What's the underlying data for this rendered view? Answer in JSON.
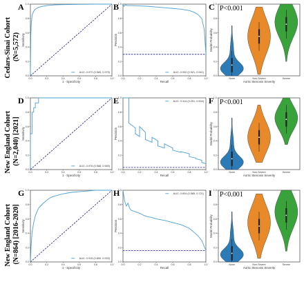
{
  "figure": {
    "cohorts": [
      {
        "name": "Cedars-Sinai Cohort",
        "size": "(N=5,572)"
      },
      {
        "name": "New England Cohort",
        "size": "(N=2,040) [2021]"
      },
      {
        "name": "New England Cohort",
        "size": "(N=864) [2016-2020]"
      }
    ]
  },
  "colors": {
    "roc": "#4a9fd4",
    "baseline": "#1f1f8f",
    "none": "#2c7bb6",
    "non_severe": "#e8892a",
    "severe": "#3aa23a"
  },
  "chart_data": [
    {
      "panel": "A",
      "type": "line",
      "xlabel": "1 - Specificity",
      "ylabel": "Sensitivity",
      "xlim": [
        0,
        1
      ],
      "ylim": [
        0,
        1
      ],
      "xticks": [
        "0.0",
        "0.2",
        "0.4",
        "0.6",
        "0.8",
        "1.0"
      ],
      "yticks": [
        "0.0",
        "0.2",
        "0.4",
        "0.6",
        "0.8",
        "1.0"
      ],
      "legend": "AUC: 0.972 (0.969, 0.975)",
      "x": [
        0,
        0.005,
        0.01,
        0.02,
        0.04,
        0.06,
        0.1,
        0.15,
        0.2,
        0.3,
        0.4,
        0.6,
        0.8,
        1.0
      ],
      "y": [
        0,
        0.55,
        0.72,
        0.84,
        0.9,
        0.93,
        0.955,
        0.97,
        0.98,
        0.99,
        0.993,
        0.997,
        0.999,
        1.0
      ]
    },
    {
      "panel": "B",
      "type": "line",
      "xlabel": "Recall",
      "ylabel": "Precision",
      "xlim": [
        0,
        1
      ],
      "ylim": [
        0,
        1
      ],
      "xticks": [
        "0.0",
        "0.2",
        "0.4",
        "0.6",
        "0.8",
        "1.0"
      ],
      "yticks": [
        "0.0",
        "0.2",
        "0.4",
        "0.6",
        "0.8",
        "1.0"
      ],
      "legend": "AUC: 0.932 (0.921, 0.941)",
      "baseline": 0.3,
      "x": [
        0,
        0.01,
        0.03,
        0.05,
        0.1,
        0.2,
        0.3,
        0.4,
        0.5,
        0.6,
        0.7,
        0.8,
        0.85,
        0.9,
        0.95,
        0.98,
        1.0
      ],
      "y": [
        1.0,
        0.97,
        0.99,
        0.98,
        0.98,
        0.975,
        0.97,
        0.96,
        0.95,
        0.94,
        0.93,
        0.91,
        0.89,
        0.86,
        0.8,
        0.65,
        0.3
      ]
    },
    {
      "panel": "C",
      "type": "violin",
      "xlabel": "Aortic Stenosis Severity",
      "ylabel": "Model Probability",
      "categories": [
        "None",
        "Non-Severe",
        "Severe"
      ],
      "ylim": [
        0,
        1
      ],
      "yticks": [
        "0.0",
        "0.2",
        "0.4",
        "0.6",
        "0.8",
        "1.0"
      ],
      "annotation": "P<0.001",
      "medians": [
        0.15,
        0.55,
        0.72
      ],
      "ranges": [
        [
          0.0,
          0.7
        ],
        [
          0.02,
          0.96
        ],
        [
          0.2,
          1.0
        ]
      ],
      "modes": [
        0.1,
        0.55,
        0.75
      ]
    },
    {
      "panel": "D",
      "type": "line",
      "xlabel": "1 - Specificity",
      "ylabel": "Sensitivity",
      "xlim": [
        0,
        1
      ],
      "ylim": [
        0,
        1
      ],
      "xticks": [
        "0.0",
        "0.2",
        "0.4",
        "0.6",
        "0.8",
        "1.0"
      ],
      "yticks": [
        "0.0",
        "0.2",
        "0.4",
        "0.6",
        "0.8",
        "1.0"
      ],
      "legend": "AUC: 0.976 (0.968, 0.983)",
      "x": [
        0,
        0.0,
        0.02,
        0.02,
        0.04,
        0.04,
        0.06,
        0.06,
        0.1,
        0.1,
        0.15,
        0.15,
        1.0
      ],
      "y": [
        0,
        0.5,
        0.5,
        0.8,
        0.8,
        0.86,
        0.86,
        0.93,
        0.93,
        1.0,
        1.0,
        1.0,
        1.0
      ]
    },
    {
      "panel": "E",
      "type": "line",
      "xlabel": "Recall",
      "ylabel": "Precision",
      "xlim": [
        0,
        1
      ],
      "ylim": [
        0,
        1
      ],
      "xticks": [
        "0.0",
        "0.2",
        "0.4",
        "0.6",
        "0.8",
        "1.0"
      ],
      "yticks": [
        "0.0",
        "0.2",
        "0.4",
        "0.6",
        "0.8",
        "1.0"
      ],
      "legend": "AUC: 0.414 (0.251, 0.594)",
      "baseline": 0.03,
      "x": [
        0.0,
        0.07,
        0.07,
        0.15,
        0.15,
        0.2,
        0.2,
        0.27,
        0.27,
        0.35,
        0.35,
        0.42,
        0.42,
        0.5,
        0.5,
        0.6,
        0.6,
        0.7,
        0.7,
        0.8,
        0.8,
        0.88,
        0.88,
        0.95,
        0.95,
        1.0
      ],
      "y": [
        1.0,
        1.0,
        0.65,
        0.58,
        0.5,
        0.46,
        0.6,
        0.52,
        0.42,
        0.38,
        0.45,
        0.4,
        0.33,
        0.3,
        0.36,
        0.3,
        0.27,
        0.24,
        0.25,
        0.22,
        0.18,
        0.16,
        0.15,
        0.13,
        0.1,
        0.08
      ]
    },
    {
      "panel": "F",
      "type": "violin",
      "xlabel": "Aortic Stenosis Severity",
      "ylabel": "Model Probability",
      "categories": [
        "None",
        "Non-Severe",
        "Severe"
      ],
      "ylim": [
        0,
        1
      ],
      "yticks": [
        "0.0",
        "0.2",
        "0.4",
        "0.6",
        "0.8",
        "1.0"
      ],
      "annotation": "P<0.001",
      "medians": [
        0.15,
        0.45,
        0.7
      ],
      "ranges": [
        [
          0.0,
          0.72
        ],
        [
          0.1,
          0.9
        ],
        [
          0.35,
          1.0
        ]
      ],
      "modes": [
        0.1,
        0.45,
        0.72
      ]
    },
    {
      "panel": "G",
      "type": "line",
      "xlabel": "1 - Specificity",
      "ylabel": "Sensitivity",
      "xlim": [
        0,
        1
      ],
      "ylim": [
        0,
        1
      ],
      "xticks": [
        "0.0",
        "0.2",
        "0.4",
        "0.6",
        "0.8",
        "1.0"
      ],
      "yticks": [
        "0.0",
        "0.2",
        "0.4",
        "0.6",
        "0.8",
        "1.0"
      ],
      "legend": "AUC: 0.915 (0.890, 0.933)",
      "x": [
        0,
        0.01,
        0.02,
        0.04,
        0.06,
        0.08,
        0.1,
        0.15,
        0.2,
        0.25,
        0.3,
        0.4,
        0.5,
        0.6,
        0.7,
        0.8,
        1.0
      ],
      "y": [
        0,
        0.25,
        0.4,
        0.55,
        0.64,
        0.7,
        0.75,
        0.81,
        0.86,
        0.9,
        0.92,
        0.95,
        0.97,
        0.98,
        0.99,
        1.0,
        1.0
      ]
    },
    {
      "panel": "H",
      "type": "line",
      "xlabel": "Recall",
      "ylabel": "Precision",
      "xlim": [
        0,
        1
      ],
      "ylim": [
        0,
        1
      ],
      "xticks": [
        "0.0",
        "0.2",
        "0.4",
        "0.6",
        "0.8",
        "1.0"
      ],
      "yticks": [
        "0.0",
        "0.2",
        "0.4",
        "0.6",
        "0.8",
        "1.0"
      ],
      "legend": "AUC: 0.604 (0.585, 0.721)",
      "baseline": 0.16,
      "x": [
        0,
        0.02,
        0.04,
        0.06,
        0.08,
        0.1,
        0.15,
        0.2,
        0.25,
        0.3,
        0.35,
        0.4,
        0.5,
        0.6,
        0.7,
        0.8,
        0.85,
        0.9,
        0.95,
        1.0
      ],
      "y": [
        1.0,
        0.85,
        0.78,
        0.82,
        0.75,
        0.72,
        0.7,
        0.68,
        0.65,
        0.63,
        0.62,
        0.6,
        0.58,
        0.55,
        0.52,
        0.47,
        0.42,
        0.37,
        0.3,
        0.16
      ]
    },
    {
      "panel": "I",
      "type": "violin",
      "xlabel": "Aortic Stenosis Severity",
      "ylabel": "Model Probability",
      "categories": [
        "None",
        "Non-Severe",
        "Severe"
      ],
      "ylim": [
        0,
        1
      ],
      "yticks": [
        "0.0",
        "0.2",
        "0.4",
        "0.6",
        "0.8",
        "1.0"
      ],
      "annotation": "P<0.001",
      "medians": [
        0.12,
        0.5,
        0.65
      ],
      "ranges": [
        [
          0.0,
          0.7
        ],
        [
          0.05,
          0.95
        ],
        [
          0.15,
          1.0
        ]
      ],
      "modes": [
        0.1,
        0.55,
        0.7
      ]
    }
  ]
}
